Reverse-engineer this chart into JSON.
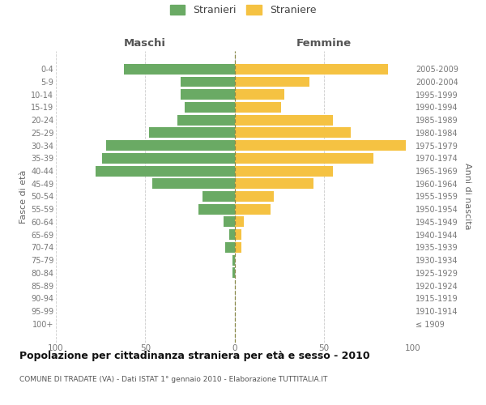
{
  "age_groups": [
    "0-4",
    "5-9",
    "10-14",
    "15-19",
    "20-24",
    "25-29",
    "30-34",
    "35-39",
    "40-44",
    "45-49",
    "50-54",
    "55-59",
    "60-64",
    "65-69",
    "70-74",
    "75-79",
    "80-84",
    "85-89",
    "90-94",
    "95-99",
    "100+"
  ],
  "birth_years": [
    "2005-2009",
    "2000-2004",
    "1995-1999",
    "1990-1994",
    "1985-1989",
    "1980-1984",
    "1975-1979",
    "1970-1974",
    "1965-1969",
    "1960-1964",
    "1955-1959",
    "1950-1954",
    "1945-1949",
    "1940-1944",
    "1935-1939",
    "1930-1934",
    "1925-1929",
    "1920-1924",
    "1915-1919",
    "1910-1914",
    "≤ 1909"
  ],
  "maschi": [
    62,
    30,
    30,
    28,
    32,
    48,
    72,
    74,
    78,
    46,
    18,
    20,
    6,
    3,
    5,
    1,
    1,
    0,
    0,
    0,
    0
  ],
  "femmine": [
    86,
    42,
    28,
    26,
    55,
    65,
    96,
    78,
    55,
    44,
    22,
    20,
    5,
    4,
    4,
    0,
    0,
    0,
    0,
    0,
    0
  ],
  "maschi_color": "#6aaa64",
  "femmine_color": "#f5c242",
  "title": "Popolazione per cittadinanza straniera per età e sesso - 2010",
  "subtitle": "COMUNE DI TRADATE (VA) - Dati ISTAT 1° gennaio 2010 - Elaborazione TUTTITALIA.IT",
  "ylabel_left": "Fasce di età",
  "ylabel_right": "Anni di nascita",
  "xlabel_left": "Maschi",
  "xlabel_right": "Femmine",
  "legend_maschi": "Stranieri",
  "legend_femmine": "Straniere",
  "xlim": 100,
  "background_color": "#ffffff",
  "grid_color": "#cccccc",
  "dashed_line_color": "#8a8a4a"
}
